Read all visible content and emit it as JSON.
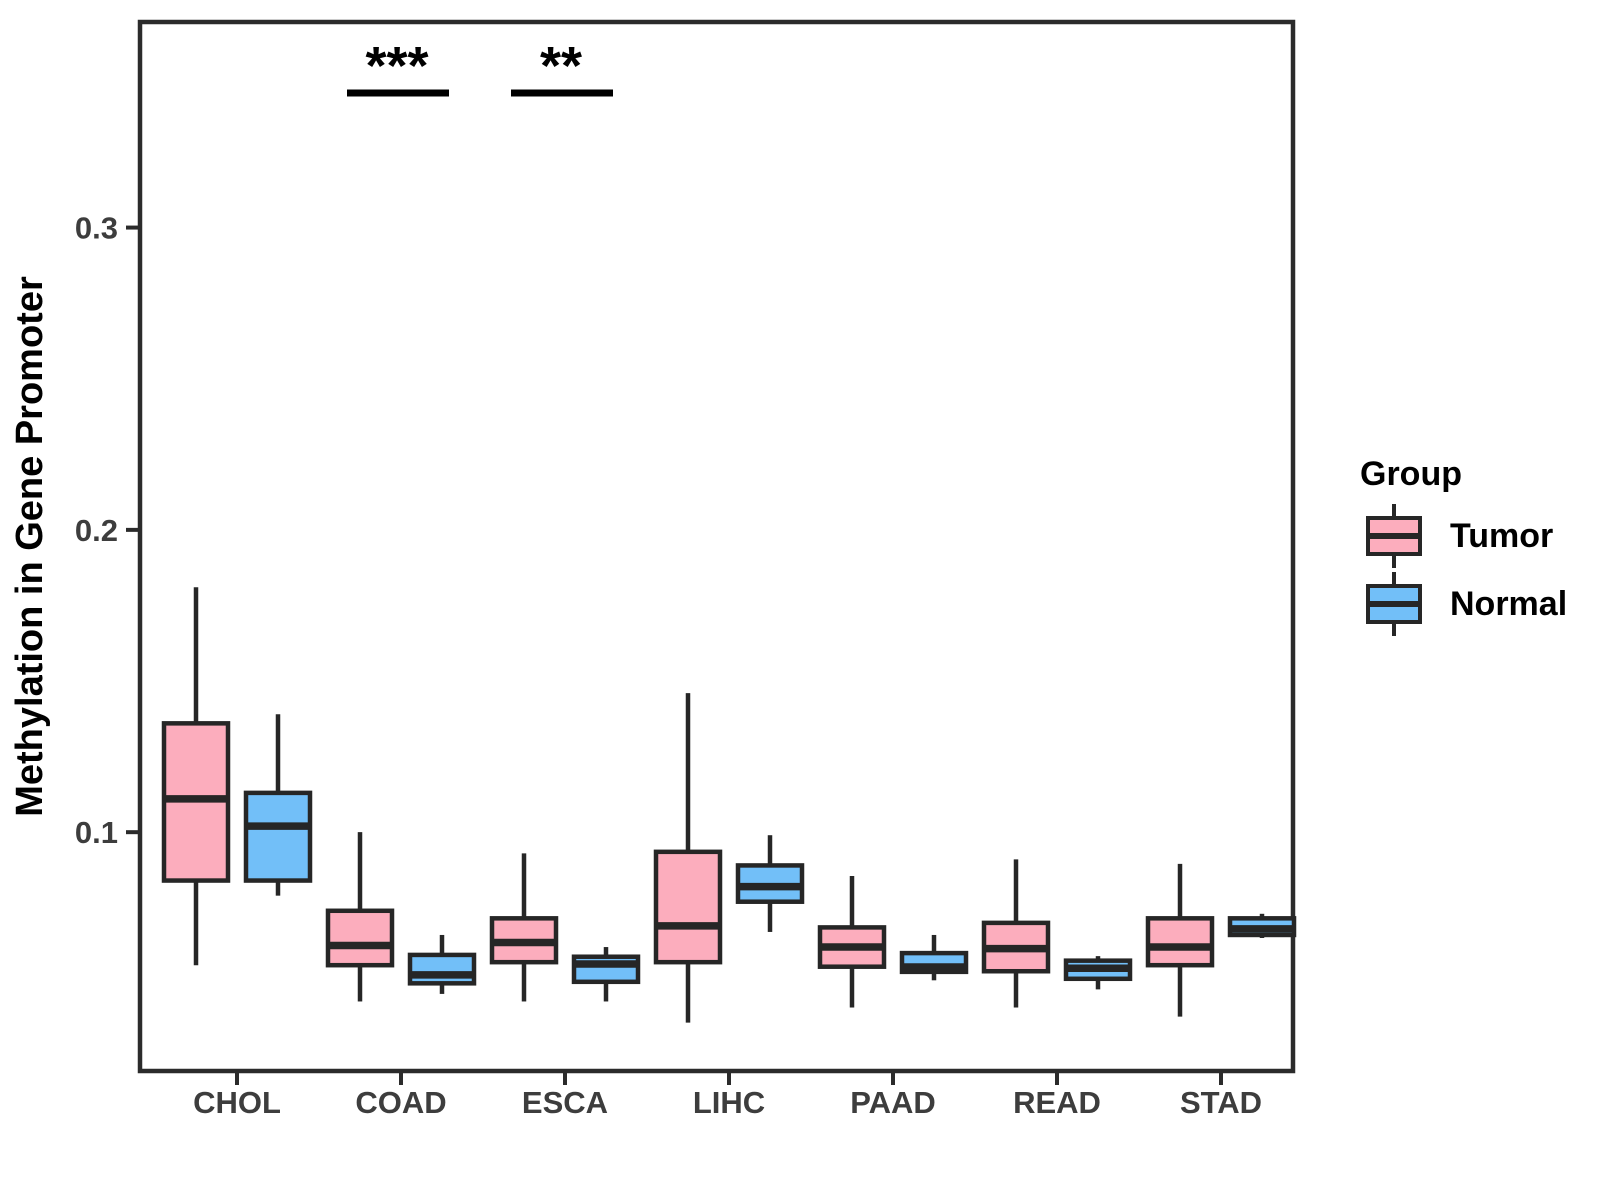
{
  "chart_data": {
    "type": "grouped_boxplot",
    "title": "",
    "xlabel": "",
    "ylabel": "Methylation in Gene Promoter",
    "categories": [
      "CHOL",
      "COAD",
      "ESCA",
      "LIHC",
      "PAAD",
      "READ",
      "STAD"
    ],
    "groups": [
      "Tumor",
      "Normal"
    ],
    "colors": {
      "Tumor": "#FCADBD",
      "Normal": "#72BFF8",
      "box_border": "#262626",
      "axis_text": "#3d3d3d",
      "panel_border": "#2b2b2b"
    },
    "y_ticks": [
      "0.1",
      "0.2",
      "0.3"
    ],
    "y_tick_values": [
      0.1,
      0.2,
      0.3
    ],
    "ylim": [
      0.021,
      0.368
    ],
    "grid": false,
    "legend": {
      "title": "Group",
      "position": "right",
      "entries": [
        {
          "label": "Tumor",
          "color": "#FCADBD"
        },
        {
          "label": "Normal",
          "color": "#72BFF8"
        }
      ]
    },
    "significance": [
      {
        "category": "COAD",
        "label": "***"
      },
      {
        "category": "ESCA",
        "label": "**"
      }
    ],
    "series": [
      {
        "name": "Tumor",
        "boxes": [
          {
            "category": "CHOL",
            "whisker_low": 0.056,
            "q1": 0.084,
            "median": 0.111,
            "q3": 0.136,
            "whisker_high": 0.181
          },
          {
            "category": "COAD",
            "whisker_low": 0.044,
            "q1": 0.056,
            "median": 0.0625,
            "q3": 0.074,
            "whisker_high": 0.1
          },
          {
            "category": "ESCA",
            "whisker_low": 0.044,
            "q1": 0.057,
            "median": 0.0635,
            "q3": 0.0715,
            "whisker_high": 0.093
          },
          {
            "category": "LIHC",
            "whisker_low": 0.037,
            "q1": 0.057,
            "median": 0.069,
            "q3": 0.0935,
            "whisker_high": 0.146
          },
          {
            "category": "PAAD",
            "whisker_low": 0.042,
            "q1": 0.0555,
            "median": 0.062,
            "q3": 0.0685,
            "whisker_high": 0.0855
          },
          {
            "category": "READ",
            "whisker_low": 0.042,
            "q1": 0.054,
            "median": 0.0615,
            "q3": 0.07,
            "whisker_high": 0.091
          },
          {
            "category": "STAD",
            "whisker_low": 0.039,
            "q1": 0.056,
            "median": 0.062,
            "q3": 0.0715,
            "whisker_high": 0.0895
          }
        ]
      },
      {
        "name": "Normal",
        "boxes": [
          {
            "category": "CHOL",
            "whisker_low": 0.079,
            "q1": 0.084,
            "median": 0.102,
            "q3": 0.113,
            "whisker_high": 0.139
          },
          {
            "category": "COAD",
            "whisker_low": 0.0465,
            "q1": 0.05,
            "median": 0.0528,
            "q3": 0.0594,
            "whisker_high": 0.066
          },
          {
            "category": "ESCA",
            "whisker_low": 0.044,
            "q1": 0.0505,
            "median": 0.0564,
            "q3": 0.0588,
            "whisker_high": 0.062
          },
          {
            "category": "LIHC",
            "whisker_low": 0.067,
            "q1": 0.077,
            "median": 0.082,
            "q3": 0.089,
            "whisker_high": 0.099
          },
          {
            "category": "PAAD",
            "whisker_low": 0.051,
            "q1": 0.0538,
            "median": 0.0554,
            "q3": 0.06,
            "whisker_high": 0.066
          },
          {
            "category": "READ",
            "whisker_low": 0.048,
            "q1": 0.0515,
            "median": 0.055,
            "q3": 0.0575,
            "whisker_high": 0.059
          },
          {
            "category": "STAD",
            "whisker_low": 0.065,
            "q1": 0.066,
            "median": 0.068,
            "q3": 0.0715,
            "whisker_high": 0.073
          }
        ]
      }
    ]
  }
}
